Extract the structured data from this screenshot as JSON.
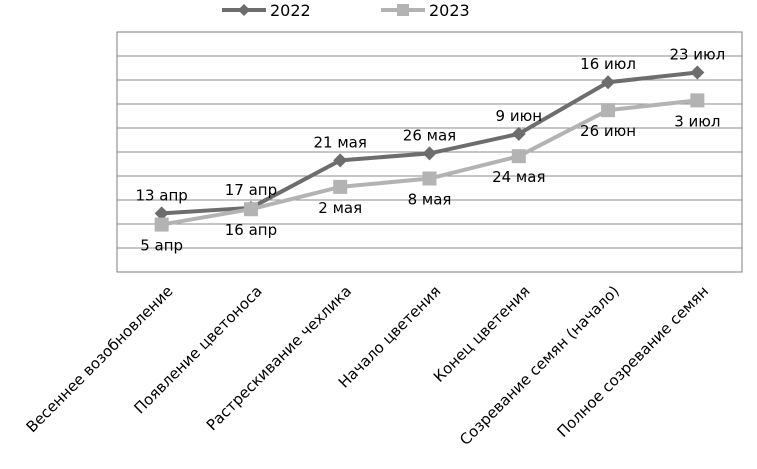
{
  "chart_data": {
    "type": "line",
    "categories": [
      "Весеннее возобновление",
      "Появление цветоноса",
      "Растрескивание чехлика",
      "Начало цветения",
      "Конец цветения",
      "Созревание семян (начало)",
      "Полное созревание семян"
    ],
    "series": [
      {
        "name": "2022",
        "color": "#6d6d6d",
        "marker": "diamond",
        "values": [
          "2022-04-13",
          "2022-04-17",
          "2022-05-21",
          "2022-05-26",
          "2022-06-09",
          "2022-07-16",
          "2022-07-23"
        ],
        "labels": [
          "13 апр",
          "17 апр",
          "21 мая",
          "26 мая",
          "9 июн",
          "16 июл",
          "23 июл"
        ]
      },
      {
        "name": "2023",
        "color": "#b3b3b3",
        "marker": "square",
        "values": [
          "2023-04-05",
          "2023-04-16",
          "2023-05-02",
          "2023-05-08",
          "2023-05-24",
          "2023-06-26",
          "2023-07-03"
        ],
        "labels": [
          "5 апр",
          "16 апр",
          "2 мая",
          "8 мая",
          "24 мая",
          "26 июн",
          "3 июл"
        ]
      }
    ],
    "ylim": [
      "03-02",
      "08-21"
    ],
    "y_gridlines": 10,
    "grid": true,
    "legend": "top-center",
    "title": "",
    "xlabel": "",
    "ylabel": ""
  }
}
